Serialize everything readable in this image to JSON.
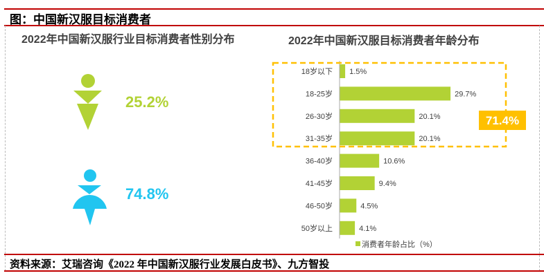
{
  "header": {
    "title": "图：中国新汉服目标消费者"
  },
  "footer": {
    "source": "资料来源：艾瑞咨询《2022 年中国新汉服行业发展白皮书》、九方智投"
  },
  "gender": {
    "title": "2022年中国新汉服行业目标消费者性别分布",
    "male": {
      "value": "25.2%",
      "color": "#b2d235"
    },
    "female": {
      "value": "74.8%",
      "color": "#21c5f0"
    }
  },
  "chart_data": {
    "type": "bar",
    "orientation": "horizontal",
    "title": "2022年中国新汉服目标消费者年龄分布",
    "categories": [
      "18岁以下",
      "18-25岁",
      "26-30岁",
      "31-35岁",
      "36-40岁",
      "41-45岁",
      "46-50岁",
      "50岁以上"
    ],
    "series": [
      {
        "name": "消费者年龄占比（%）",
        "values": [
          1.5,
          29.7,
          20.1,
          20.1,
          10.6,
          9.4,
          4.5,
          4.1
        ],
        "color": "#b2d235"
      }
    ],
    "data_labels": [
      "1.5%",
      "29.7%",
      "20.1%",
      "20.1%",
      "10.6%",
      "9.4%",
      "4.5%",
      "4.1%"
    ],
    "legend": "bottom",
    "annotation": {
      "text": "71.4%",
      "highlighted_categories": [
        "18岁以下",
        "18-25岁",
        "26-30岁",
        "31-35岁"
      ],
      "color": "#ffc000"
    }
  }
}
